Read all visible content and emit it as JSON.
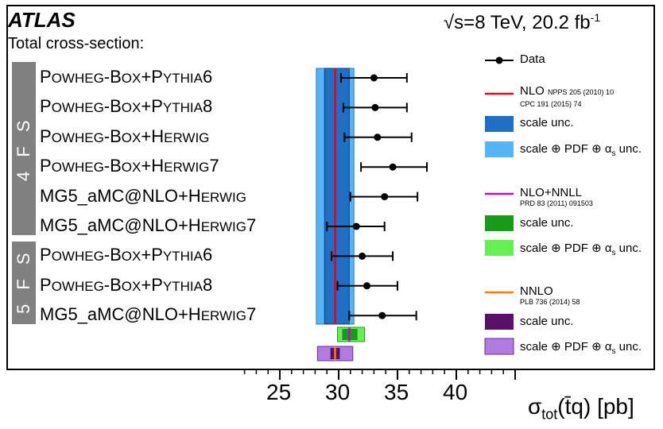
{
  "header": {
    "atlas": "ATLAS",
    "energy_label": "√s=8 TeV, 20.2 fb",
    "lumi_sup": "-1",
    "subtitle": "Total cross-section:"
  },
  "groups": {
    "fs4": "4 F S",
    "fs5": "5 F S"
  },
  "generators": [
    {
      "parts": [
        "P",
        "OWHEG",
        "-B",
        "OX",
        "+P",
        "YTHIA",
        "6"
      ]
    },
    {
      "parts": [
        "P",
        "OWHEG",
        "-B",
        "OX",
        "+P",
        "YTHIA",
        "8"
      ]
    },
    {
      "parts": [
        "P",
        "OWHEG",
        "-B",
        "OX",
        "+H",
        "ERWIG",
        ""
      ]
    },
    {
      "parts": [
        "P",
        "OWHEG",
        "-B",
        "OX",
        "+H",
        "ERWIG",
        "7"
      ]
    },
    {
      "parts": [
        "MG5_aMC@NLO",
        "",
        "",
        "",
        "+H",
        "ERWIG",
        ""
      ]
    },
    {
      "parts": [
        "MG5_aMC@NLO",
        "",
        "",
        "",
        "+H",
        "ERWIG",
        "7"
      ]
    },
    {
      "parts": [
        "P",
        "OWHEG",
        "-B",
        "OX",
        "+P",
        "YTHIA",
        "6"
      ]
    },
    {
      "parts": [
        "P",
        "OWHEG",
        "-B",
        "OX",
        "+P",
        "YTHIA",
        "8"
      ]
    },
    {
      "parts": [
        "MG5_aMC@NLO",
        "",
        "",
        "",
        "+H",
        "ERWIG",
        "7"
      ]
    }
  ],
  "legend": {
    "data": "Data",
    "nlo": "NLO",
    "nlo_ref1": "NPPS 205 (2010) 10",
    "nlo_ref2": "CPC 191 (2015) 74",
    "nlo_scale": "scale unc.",
    "nlo_full": "scale ⊕ PDF ⊕ α",
    "nnll": "NLO+NNLL",
    "nnll_ref": "PRD 83 (2011) 091503",
    "nnll_scale": "scale unc.",
    "nnll_full": "scale ⊕ PDF ⊕ α",
    "nnlo": "NNLO",
    "nnlo_ref": "PLB 736 (2014) 58",
    "nnlo_scale": "scale unc.",
    "nnlo_full": "scale ⊕ PDF ⊕ α",
    "alpha_sub": "s",
    "unc_suffix": " unc."
  },
  "axis": {
    "sigma": "σ",
    "sub": "tot",
    "tq": "(t̄q)",
    "unit": " [pb]",
    "ticks": [
      "25",
      "30",
      "35",
      "40"
    ]
  },
  "colors": {
    "nlo_line": "#e8001c",
    "nlo_scale": "#1f6fc4",
    "nlo_full": "#56b4f4",
    "nnll_line": "#cc00cc",
    "nnll_scale": "#1a9a1a",
    "nnll_full": "#66ee55",
    "nnlo_line": "#ff8000",
    "nnlo_scale": "#5a0f6a",
    "nnlo_full": "#b07ce0",
    "gray_bar": "#808080"
  },
  "chart_data": {
    "type": "scatter",
    "xlabel": "σtot(t̄q) [pb]",
    "xlim": [
      20,
      48
    ],
    "xticks": [
      25,
      30,
      35,
      40
    ],
    "series": [
      {
        "name": "Data",
        "points": [
          {
            "x": 33.0,
            "xerr_low": 2.8,
            "xerr_high": 2.8
          },
          {
            "x": 33.1,
            "xerr_low": 2.7,
            "xerr_high": 2.7
          },
          {
            "x": 33.3,
            "xerr_low": 2.8,
            "xerr_high": 2.9
          },
          {
            "x": 34.6,
            "xerr_low": 2.7,
            "xerr_high": 2.9
          },
          {
            "x": 33.9,
            "xerr_low": 2.9,
            "xerr_high": 2.8
          },
          {
            "x": 31.5,
            "xerr_low": 2.5,
            "xerr_high": 2.4
          },
          {
            "x": 32.0,
            "xerr_low": 2.6,
            "xerr_high": 2.6
          },
          {
            "x": 32.4,
            "xerr_low": 2.5,
            "xerr_high": 2.6
          },
          {
            "x": 33.7,
            "xerr_low": 2.8,
            "xerr_high": 2.9
          }
        ]
      }
    ],
    "theory": {
      "nlo": {
        "central": 29.7,
        "scale": [
          28.8,
          30.9
        ],
        "full": [
          28.1,
          31.3
        ]
      },
      "nnll": {
        "central": 30.9,
        "scale": [
          30.3,
          31.6
        ],
        "full": [
          29.9,
          32.2
        ]
      },
      "nnlo": {
        "central": 29.7,
        "scale": [
          29.3,
          30.1
        ],
        "full": [
          28.2,
          31.2
        ]
      }
    }
  }
}
